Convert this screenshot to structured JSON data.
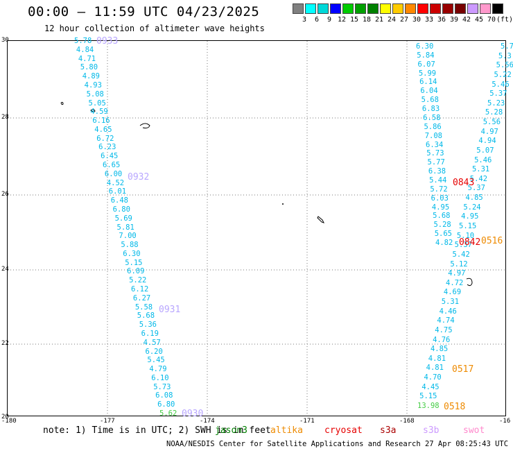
{
  "title": "00:00 – 11:59 UTC 04/23/2025",
  "subtitle": "12 hour collection of altimeter wave heights",
  "legend": {
    "unit": "(ft)",
    "colors": [
      "#808080",
      "#00ffff",
      "#00d8d8",
      "#0000ff",
      "#00cc00",
      "#00a000",
      "#008000",
      "#ffff00",
      "#ffcc00",
      "#ff8800",
      "#ff0000",
      "#cc0000",
      "#990000",
      "#770000",
      "#cc99ff",
      "#ff99cc",
      "#000000"
    ],
    "labels": [
      "3",
      "6",
      "9",
      "12",
      "15",
      "18",
      "21",
      "24",
      "27",
      "30",
      "33",
      "36",
      "39",
      "42",
      "45",
      "70"
    ]
  },
  "axes": {
    "y_labels": [
      "30",
      "28",
      "26",
      "24",
      "22",
      "20"
    ],
    "x_labels": [
      "-180",
      "-177",
      "-174",
      "-171",
      "-168",
      "-16"
    ]
  },
  "tracks": {
    "left": [
      "5.78",
      "4.84",
      "4.71",
      "5.80",
      "4.89",
      "4.93",
      "5.08",
      "5.05",
      "4.59",
      "6.16",
      "4.65",
      "6.72",
      "6.23",
      "6.45",
      "6.65",
      "6.00",
      "4.52",
      "6.01",
      "6.48",
      "6.80",
      "5.69",
      "5.81",
      "7.00",
      "5.88",
      "6.30",
      "5.15",
      "6.09",
      "5.22",
      "6.12",
      "6.27",
      "5.58",
      "5.68",
      "5.36",
      "6.19",
      "4.57",
      "6.20",
      "5.45",
      "4.79",
      "6.10",
      "5.73",
      "6.08",
      "6.80",
      "5.62"
    ],
    "left_times": [
      "0933",
      "0932",
      "0931",
      "0930"
    ],
    "middle": [
      "6.30",
      "5.84",
      "6.07",
      "5.99",
      "6.14",
      "6.04",
      "5.68",
      "6.83",
      "6.58",
      "5.86",
      "7.08",
      "6.34",
      "5.73",
      "5.77",
      "6.38",
      "5.44",
      "5.72",
      "6.03",
      "4.95",
      "5.68",
      "5.28",
      "5.65",
      "4.82"
    ],
    "right": [
      "5.7",
      "5.3",
      "5.56",
      "5.22",
      "5.46",
      "5.37",
      "5.23",
      "5.28",
      "5.56",
      "4.97",
      "4.94",
      "5.07",
      "5.46",
      "5.31",
      "5.42",
      "5.37",
      "4.85",
      "5.24",
      "4.95",
      "5.15",
      "5.10",
      "5.37",
      "5.42",
      "5.12",
      "4.97",
      "4.72",
      "4.69",
      "5.31",
      "4.46",
      "4.74",
      "4.75",
      "4.76",
      "4.85",
      "4.81",
      "4.81",
      "4.70",
      "4.45",
      "5.15",
      "13.98"
    ],
    "right_times": [
      "0843",
      "0842",
      "0516",
      "0517",
      "0518"
    ]
  },
  "note": "note: 1) Time is in UTC; 2) SWH is in feet",
  "satellites": [
    "jason3",
    "altika",
    "cryosat",
    "s3a",
    "s3b",
    "swot"
  ],
  "footer": "NOAA/NESDIS Center for Satellite Applications and Research   27 Apr 08:25:43 UTC 2025"
}
